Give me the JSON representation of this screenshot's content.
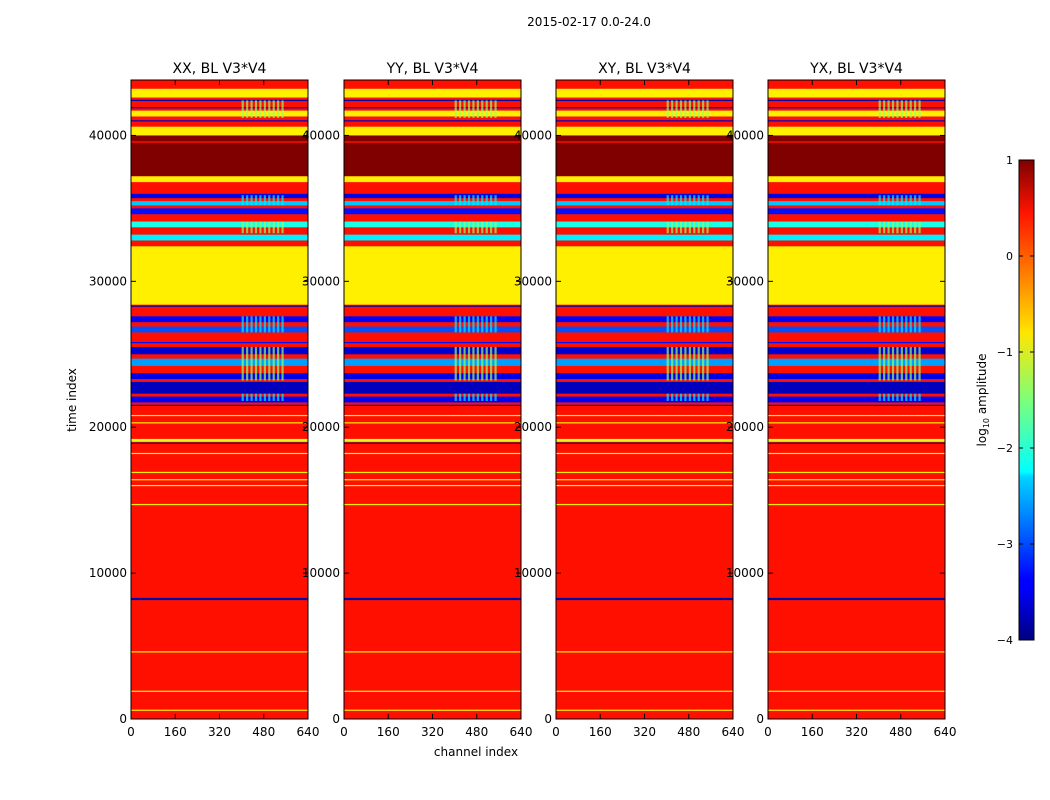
{
  "figure": {
    "suptitle": "2015-02-17 0.0-24.0",
    "xlabel": "channel index",
    "ylabel": "time index"
  },
  "colorbar": {
    "label": "log",
    "label_sub": "10",
    "label_rest": " amplitude",
    "colormap": "jet",
    "range": [
      -4,
      1
    ],
    "ticks": [
      1,
      0,
      -1,
      -2,
      -3,
      -4
    ],
    "tick_labels": [
      "1",
      "0",
      "−1",
      "−2",
      "−3",
      "−4"
    ]
  },
  "chart_data": [
    {
      "type": "heatmap",
      "title": "XX, BL V3*V4",
      "xlim": [
        0,
        640
      ],
      "ylim": [
        0,
        43800
      ],
      "xticks": [
        0,
        160,
        320,
        480,
        640
      ],
      "yticks": [
        0,
        10000,
        20000,
        30000,
        40000
      ]
    },
    {
      "type": "heatmap",
      "title": "YY, BL V3*V4",
      "xlim": [
        0,
        640
      ],
      "ylim": [
        0,
        43800
      ],
      "xticks": [
        0,
        160,
        320,
        480,
        640
      ],
      "yticks": [
        0,
        10000,
        20000,
        30000,
        40000
      ]
    },
    {
      "type": "heatmap",
      "title": "XY, BL V3*V4",
      "xlim": [
        0,
        640
      ],
      "ylim": [
        0,
        43800
      ],
      "xticks": [
        0,
        160,
        320,
        480,
        640
      ],
      "yticks": [
        0,
        10000,
        20000,
        30000,
        40000
      ]
    },
    {
      "type": "heatmap",
      "title": "YX, BL V3*V4",
      "xlim": [
        0,
        640
      ],
      "ylim": [
        0,
        43800
      ],
      "xticks": [
        0,
        160,
        320,
        480,
        640
      ],
      "yticks": [
        0,
        10000,
        20000,
        30000,
        40000
      ]
    }
  ],
  "heatmap_structure": {
    "background_value": 0.3,
    "bands": [
      {
        "y": [
          37200,
          39500
        ],
        "value": 1.0
      },
      {
        "y": [
          39600,
          40000
        ],
        "value": 1.0
      },
      {
        "y": [
          40000,
          40600
        ],
        "value": -0.8
      },
      {
        "y": [
          41300,
          41700
        ],
        "value": -0.8
      },
      {
        "y": [
          42600,
          43200
        ],
        "value": -0.8
      },
      {
        "y": [
          36800,
          37200
        ],
        "value": -0.8
      },
      {
        "y": [
          35700,
          36000
        ],
        "value": -3.5
      },
      {
        "y": [
          35200,
          35500
        ],
        "value": -2.4
      },
      {
        "y": [
          34600,
          35000
        ],
        "value": -3.3
      },
      {
        "y": [
          33700,
          34100
        ],
        "value": -2.0
      },
      {
        "y": [
          32800,
          33200
        ],
        "value": -2.2
      },
      {
        "y": [
          28400,
          32400
        ],
        "value": -0.8
      },
      {
        "y": [
          27200,
          27600
        ],
        "value": -3.4
      },
      {
        "y": [
          26500,
          26900
        ],
        "value": -3.0
      },
      {
        "y": [
          25000,
          25500
        ],
        "value": -3.6
      },
      {
        "y": [
          24200,
          24700
        ],
        "value": -2.6
      },
      {
        "y": [
          23300,
          23700
        ],
        "value": -3.5
      },
      {
        "y": [
          22300,
          23100
        ],
        "value": -3.7
      },
      {
        "y": [
          21700,
          22100
        ],
        "value": -3.4
      },
      {
        "y": [
          19000,
          19200
        ],
        "value": -1.0
      },
      {
        "y": [
          8150,
          8300
        ],
        "value": -3.8
      }
    ],
    "lines": [
      {
        "y": 42400,
        "value": -3.8
      },
      {
        "y": 41900,
        "value": -3.6
      },
      {
        "y": 41000,
        "value": -3.7
      },
      {
        "y": 28300,
        "value": -3.8
      },
      {
        "y": 25800,
        "value": -3.3
      },
      {
        "y": 21500,
        "value": -3.6
      },
      {
        "y": 18900,
        "value": -3.8
      },
      {
        "y": 20800,
        "value": -0.8
      },
      {
        "y": 20300,
        "value": -0.8
      },
      {
        "y": 18200,
        "value": -0.8
      },
      {
        "y": 16900,
        "value": -0.8
      },
      {
        "y": 16400,
        "value": -0.8
      },
      {
        "y": 16000,
        "value": -0.8
      },
      {
        "y": 14700,
        "value": -0.8
      },
      {
        "y": 4600,
        "value": -0.8
      },
      {
        "y": 1900,
        "value": -0.8
      },
      {
        "y": 600,
        "value": -0.8
      }
    ]
  }
}
